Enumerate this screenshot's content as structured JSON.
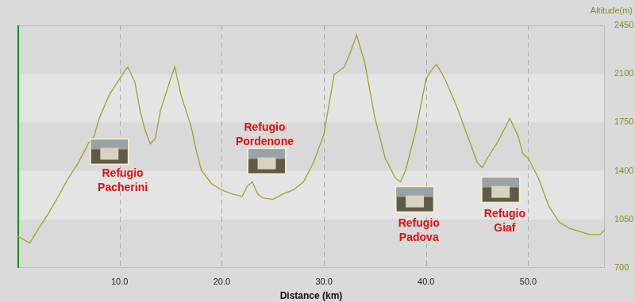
{
  "chart_data": {
    "type": "line",
    "x_label": "Distance (km)",
    "y_label": "Altitude(m)",
    "x": [
      0,
      1.2,
      2,
      3,
      4,
      5,
      6,
      7,
      7.5,
      8,
      9,
      10,
      10.5,
      10.8,
      11.5,
      12,
      12.5,
      13,
      13.5,
      14,
      15,
      15.4,
      16,
      17,
      17.5,
      18,
      19,
      20,
      21,
      22,
      22.5,
      23,
      23.5,
      24,
      25,
      26,
      27,
      28,
      29,
      30,
      31,
      32,
      32.5,
      33.2,
      34,
      35,
      36,
      37,
      37.5,
      38,
      39,
      40,
      40.5,
      41,
      41.5,
      42,
      43,
      44,
      45,
      45.5,
      46,
      47,
      47.8,
      48.2,
      49,
      49.5,
      50,
      51,
      52,
      53,
      54,
      55,
      56,
      57,
      57.5
    ],
    "values": [
      930,
      880,
      975,
      1090,
      1216,
      1350,
      1463,
      1607,
      1650,
      1780,
      1950,
      2065,
      2120,
      2150,
      2040,
      1836,
      1693,
      1595,
      1635,
      1836,
      2065,
      2150,
      1950,
      1720,
      1549,
      1405,
      1308,
      1262,
      1234,
      1216,
      1290,
      1320,
      1234,
      1205,
      1194,
      1234,
      1262,
      1320,
      1463,
      1664,
      2094,
      2150,
      2238,
      2381,
      2180,
      1779,
      1492,
      1348,
      1320,
      1405,
      1693,
      2065,
      2123,
      2169,
      2112,
      2037,
      1865,
      1664,
      1463,
      1423,
      1492,
      1607,
      1721,
      1779,
      1652,
      1520,
      1492,
      1348,
      1148,
      1033,
      987,
      964,
      941,
      941,
      975
    ],
    "color": "#a0a030",
    "xlim": [
      0,
      57.5
    ],
    "xticks": [
      {
        "value": 10,
        "label": "10.0"
      },
      {
        "value": 20,
        "label": "20.0"
      },
      {
        "value": 30,
        "label": "30.0"
      },
      {
        "value": 40,
        "label": "40.0"
      },
      {
        "value": 50,
        "label": "50.0"
      }
    ],
    "ylim": [
      700,
      2450
    ],
    "yticks": [
      700,
      1050,
      1400,
      1750,
      2100,
      2450
    ],
    "grid": true,
    "annotations": [
      {
        "text": "Refugio Pacherini",
        "x": 10.3,
        "y": 1326,
        "image_x": 9.0,
        "image_y": 1538
      },
      {
        "text": "Refugio Pordenone",
        "x": 24.2,
        "y": 1659,
        "image_x": 24.4,
        "image_y": 1469
      },
      {
        "text": "Refugio Padova",
        "x": 39.3,
        "y": 970,
        "image_x": 38.9,
        "image_y": 1194
      },
      {
        "text": "Refugio Giaf",
        "x": 47.7,
        "y": 1039,
        "image_x": 47.3,
        "image_y": 1263
      }
    ]
  }
}
